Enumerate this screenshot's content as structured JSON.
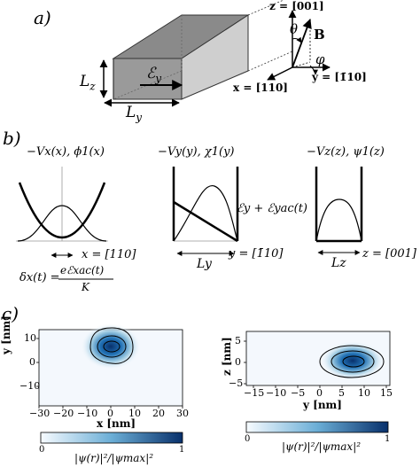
{
  "panels": {
    "a": {
      "label": "a)"
    },
    "b": {
      "label": "b)"
    },
    "c": {
      "label": "c)"
    }
  },
  "panel_a": {
    "dim_z": "L",
    "dim_z_sub": "z",
    "dim_y": "L",
    "dim_y_sub": "y",
    "field": "ℰ",
    "field_sub": "y",
    "axis_z": "z = [001]",
    "axis_x": "x = [110]",
    "axis_y": "y = [1̄10]",
    "vec_B": "B",
    "angle_theta": "θ",
    "angle_phi": "φ"
  },
  "panel_b": {
    "plot1_title": "−Vx(x), ϕ1(x)",
    "plot1_axis": "x = [110]",
    "plot2_title": "−Vy(y), χ1(y)",
    "plot2_axis": "y = [1̄10]",
    "plot2_width": "Ly",
    "plot2_field": "ℰy + ℰyac(t)",
    "plot3_title": "−Vz(z), ψ1(z)",
    "plot3_axis": "z = [001]",
    "plot3_width": "Lz",
    "formula_lhs": "δx(t) =",
    "formula_num": "eℰxac(t)",
    "formula_den": "K"
  },
  "panel_c": {
    "left": {
      "ylabel": "y [nm]",
      "xlabel": "x [nm]",
      "xticks": [
        "−30",
        "−20",
        "−10",
        "0",
        "10",
        "20",
        "30"
      ],
      "yticks": [
        "10",
        "0",
        "−10"
      ],
      "cbar_ticks": [
        "0",
        "1"
      ],
      "cbar_label": "|ψ(r)|²/|ψmax|²"
    },
    "right": {
      "ylabel": "z [nm]",
      "xlabel": "y [nm]",
      "xticks": [
        "−15",
        "−10",
        "−5",
        "0",
        "5",
        "10",
        "15"
      ],
      "yticks": [
        "5",
        "0",
        "−5"
      ],
      "cbar_ticks": [
        "0",
        "1"
      ],
      "cbar_label": "|ψ(r)|²/|ψmax|²"
    },
    "colors": {
      "low": "#f7fbff",
      "mid": "#6baed6",
      "high": "#08306b"
    }
  }
}
